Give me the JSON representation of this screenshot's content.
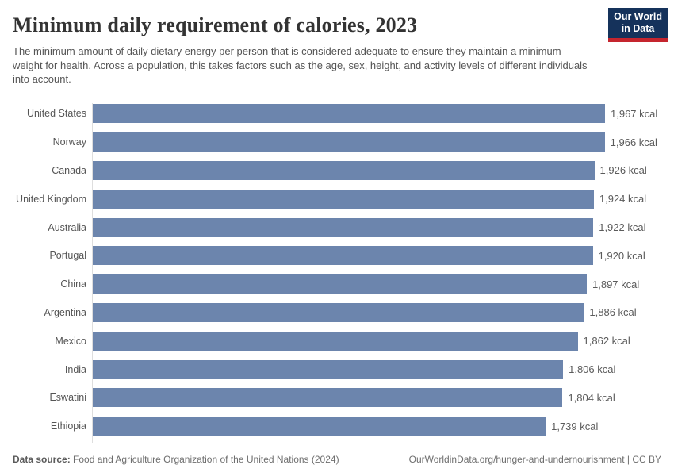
{
  "header": {
    "title": "Minimum daily requirement of calories, 2023",
    "subtitle": "The minimum amount of daily dietary energy per person that is considered adequate to ensure they maintain a minimum weight for health. Across a population, this takes factors such as the age, sex, height, and activity levels of different individuals into account.",
    "logo": {
      "line1": "Our World",
      "line2": "in Data",
      "bg_color": "#15325b",
      "accent_color": "#c5252e"
    }
  },
  "chart_data": {
    "type": "bar",
    "orientation": "horizontal",
    "title": "Minimum daily requirement of calories, 2023",
    "categories": [
      "United States",
      "Norway",
      "Canada",
      "United Kingdom",
      "Australia",
      "Portugal",
      "China",
      "Argentina",
      "Mexico",
      "India",
      "Eswatini",
      "Ethiopia"
    ],
    "values": [
      1967,
      1966,
      1926,
      1924,
      1922,
      1920,
      1897,
      1886,
      1862,
      1806,
      1804,
      1739
    ],
    "value_labels": [
      "1,967 kcal",
      "1,966 kcal",
      "1,926 kcal",
      "1,924 kcal",
      "1,922 kcal",
      "1,920 kcal",
      "1,897 kcal",
      "1,886 kcal",
      "1,862 kcal",
      "1,806 kcal",
      "1,804 kcal",
      "1,739 kcal"
    ],
    "unit": "kcal",
    "xlim": [
      0,
      1967
    ],
    "grid": false,
    "legend": "none",
    "bar_color": "#6c85ad",
    "label_color": "#555555",
    "value_color": "#5b5b5b"
  },
  "footer": {
    "datasource_label": "Data source:",
    "datasource_text": "Food and Agriculture Organization of the United Nations (2024)",
    "link_text": "OurWorldinData.org/hunger-and-undernourishment | CC BY"
  }
}
